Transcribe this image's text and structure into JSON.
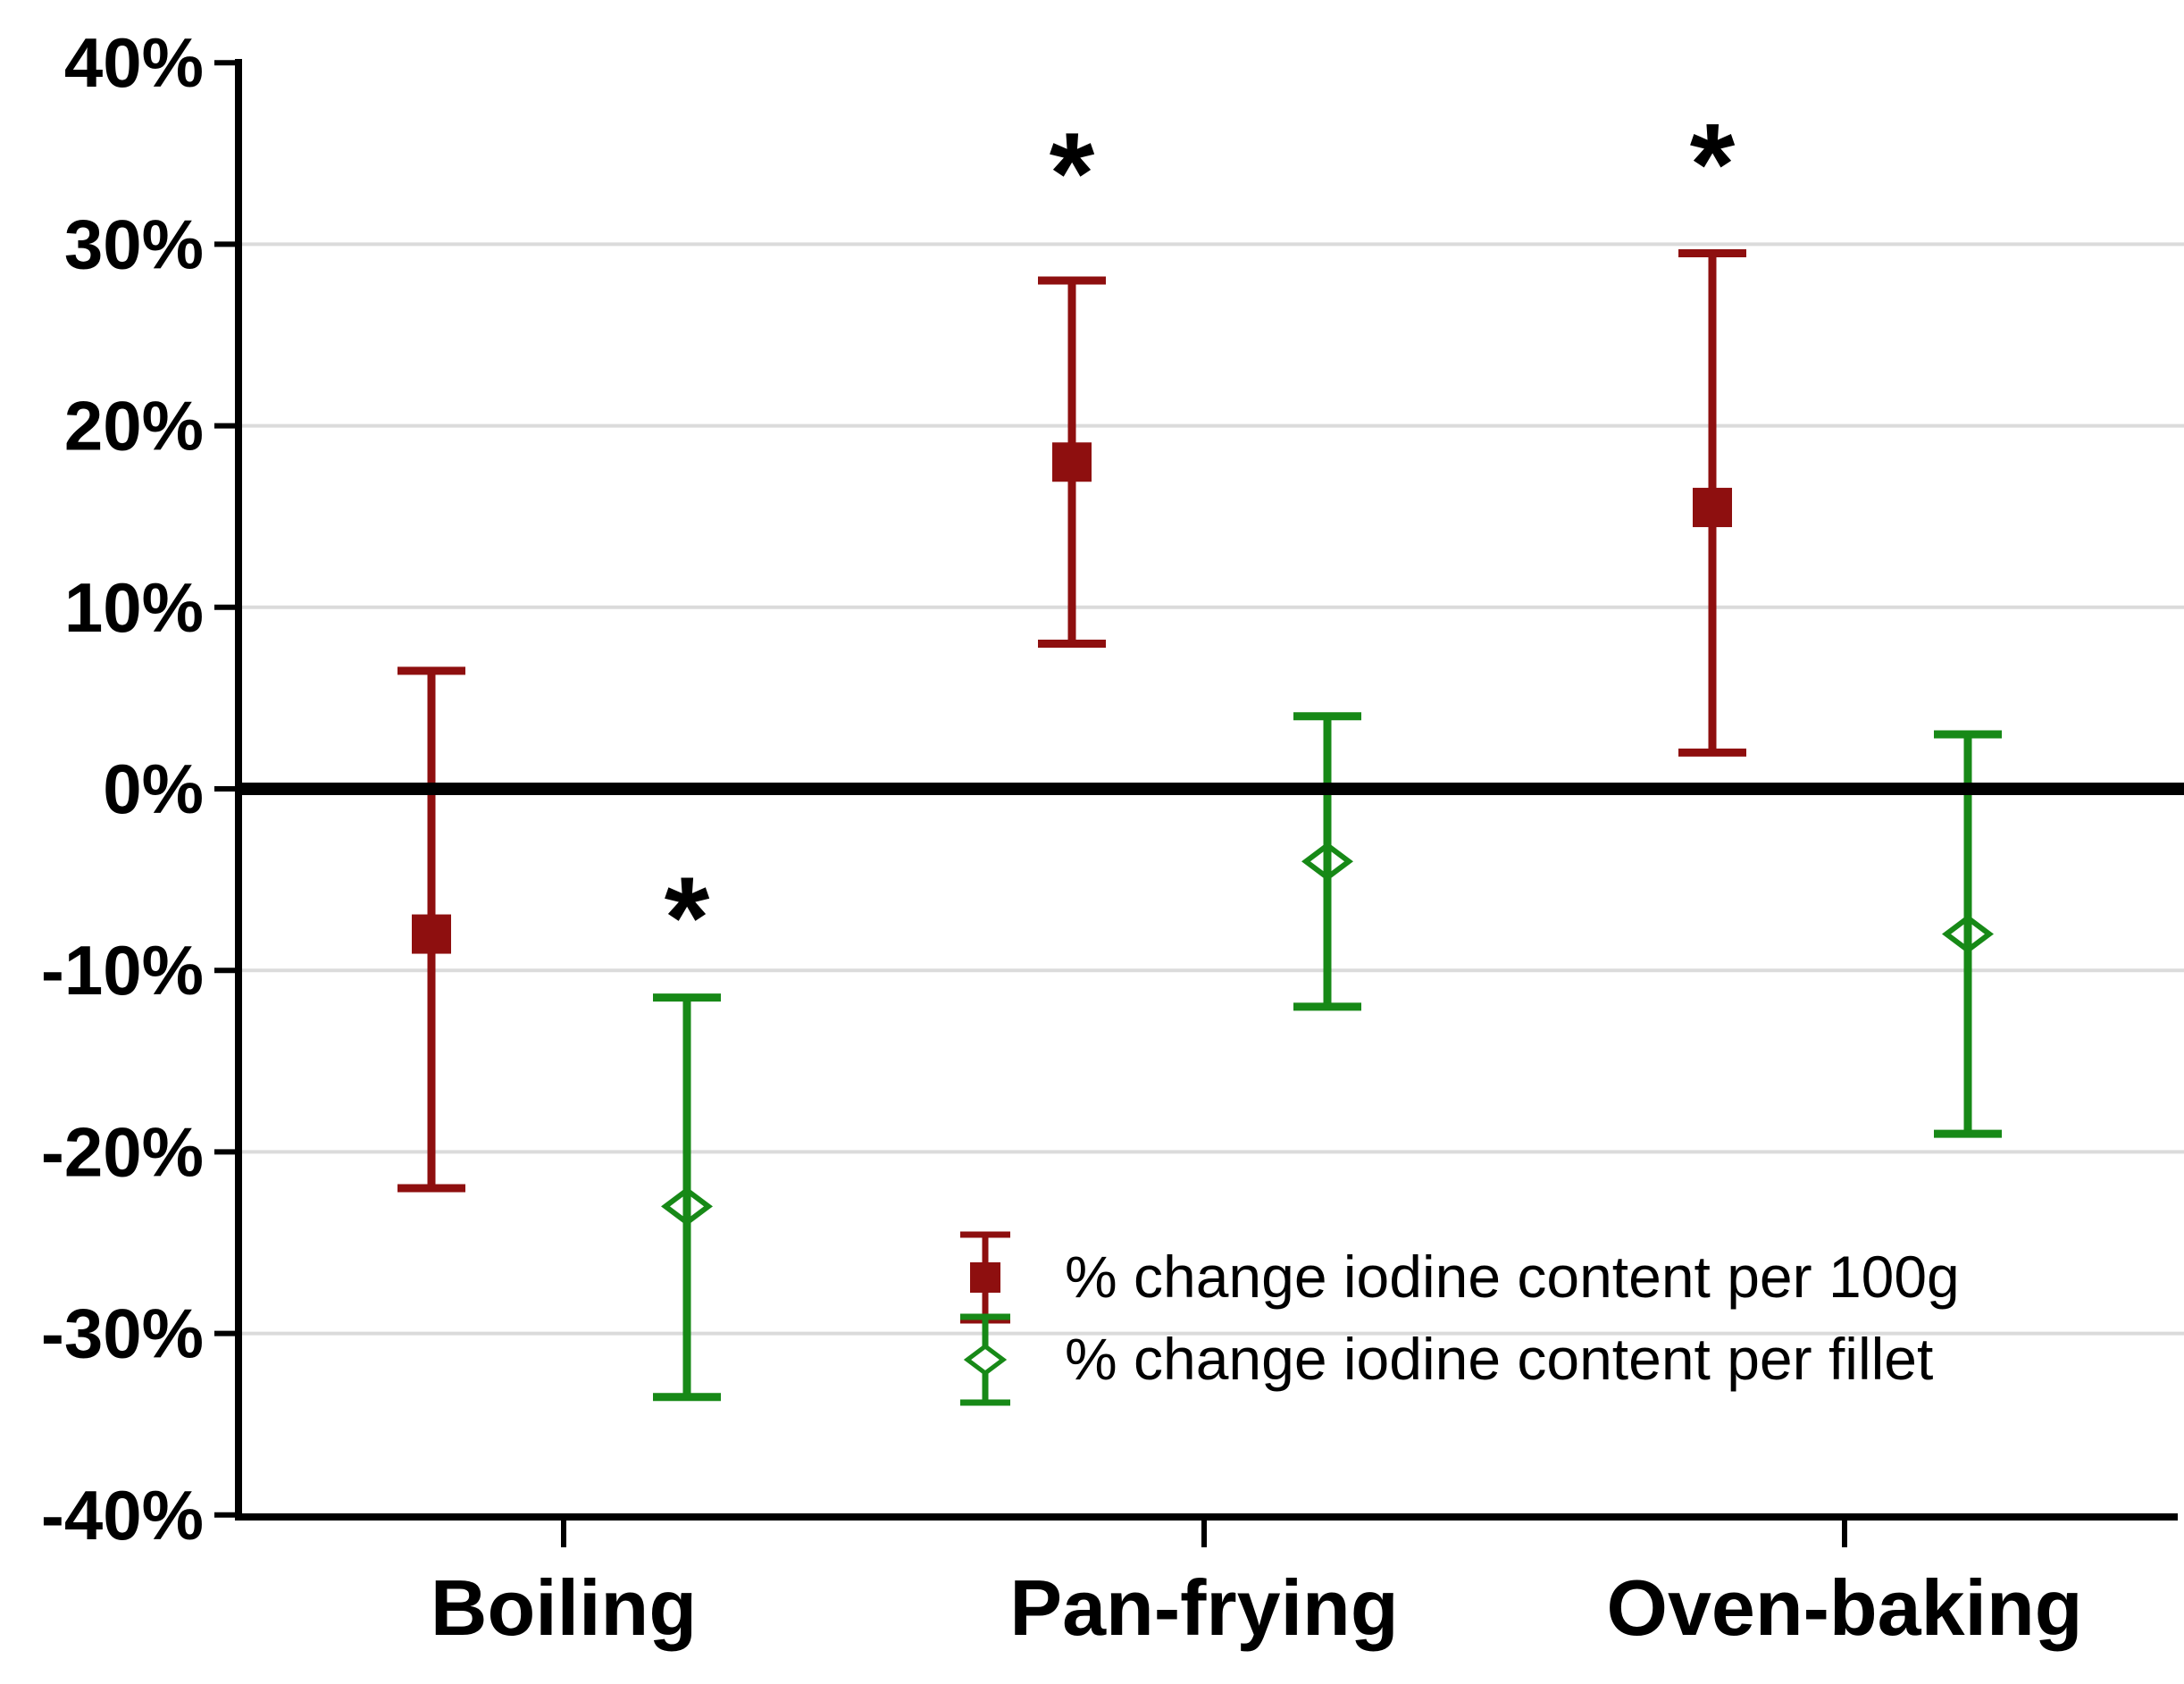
{
  "chart_data": {
    "type": "scatter",
    "title": "",
    "categories": [
      "Boiling",
      "Pan-frying",
      "Oven-baking"
    ],
    "series": [
      {
        "name": "% change iodine content per 100g",
        "marker": "filled-square",
        "color": "#8E0F0F",
        "values": [
          -8,
          18,
          15.5
        ],
        "ci_high": [
          6.5,
          28,
          29.5
        ],
        "ci_low": [
          -22,
          8,
          2
        ],
        "significant": [
          false,
          true,
          true
        ]
      },
      {
        "name": "% change iodine content per fillet",
        "marker": "open-diamond",
        "color": "#178917",
        "values": [
          -23,
          -4,
          -8
        ],
        "ci_high": [
          -11.5,
          4,
          3
        ],
        "ci_low": [
          -33.5,
          -12,
          -19
        ],
        "significant": [
          true,
          false,
          false
        ]
      }
    ],
    "annotations": [
      {
        "label": "*",
        "category_index": 0,
        "series_index": 1,
        "y": -6
      },
      {
        "label": "*",
        "category_index": 1,
        "series_index": 0,
        "y": 35
      },
      {
        "label": "*",
        "category_index": 2,
        "series_index": 0,
        "y": 35.5
      }
    ],
    "ylim": [
      -40,
      40
    ],
    "ytick_step": 10,
    "ytick_labels": [
      "40%",
      "30%",
      "20%",
      "10%",
      "0%",
      "-10%",
      "-20%",
      "-30%",
      "-40%"
    ],
    "yticks": [
      40,
      30,
      20,
      10,
      0,
      -10,
      -20,
      -30,
      -40
    ],
    "gridline_ticks": [
      30,
      20,
      10,
      -10,
      -20,
      -30
    ],
    "grid": true,
    "zero_line_y": 0,
    "legend_position": "inside-bottom-right",
    "significance_marker": "*"
  },
  "colors": {
    "background": "#FFFFFF",
    "axis": "#000000",
    "gridline": "#DBDBDB",
    "zero_line": "#000000",
    "text": "#000000",
    "series_100g": "#8E0F0F",
    "series_fillet": "#178917"
  }
}
